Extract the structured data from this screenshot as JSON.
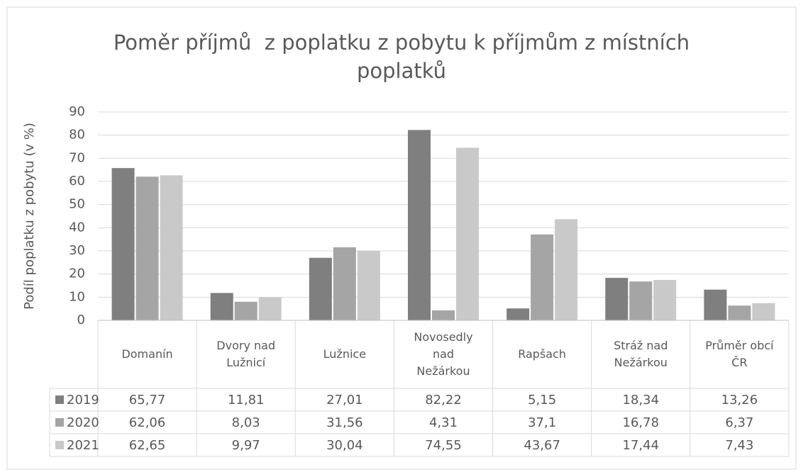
{
  "chart_data": {
    "type": "bar",
    "title": "Poměr příjmů  z poplatku z pobytu k příjmům z místních poplatků",
    "y_label": "Podíl poplatku z pobytu (v %)",
    "categories": [
      "Domanín",
      "Dvory nad Lužnicí",
      "Lužnice",
      "Novosedly nad Nežárkou",
      "Rapšach",
      "Stráž nad Nežárkou",
      "Průměr obcí ČR"
    ],
    "series": [
      {
        "name": "2019",
        "color": "#7f7f7f",
        "values": [
          65.77,
          11.81,
          27.01,
          82.22,
          5.15,
          18.34,
          13.26
        ],
        "value_labels": [
          "65,77",
          "11,81",
          "27,01",
          "82,22",
          "5,15",
          "18,34",
          "13,26"
        ]
      },
      {
        "name": "2020",
        "color": "#a5a5a5",
        "values": [
          62.06,
          8.03,
          31.56,
          4.31,
          37.1,
          16.78,
          6.37
        ],
        "value_labels": [
          "62,06",
          "8,03",
          "31,56",
          "4,31",
          "37,1",
          "16,78",
          "6,37"
        ]
      },
      {
        "name": "2021",
        "color": "#c9c9c9",
        "values": [
          62.65,
          9.97,
          30.04,
          74.55,
          43.67,
          17.44,
          7.43
        ],
        "value_labels": [
          "62,65",
          "9,97",
          "30,04",
          "74,55",
          "43,67",
          "17,44",
          "7,43"
        ]
      }
    ],
    "ylim": [
      0,
      90
    ],
    "yticks": [
      0,
      10,
      20,
      30,
      40,
      50,
      60,
      70,
      80,
      90
    ],
    "grid": true
  }
}
